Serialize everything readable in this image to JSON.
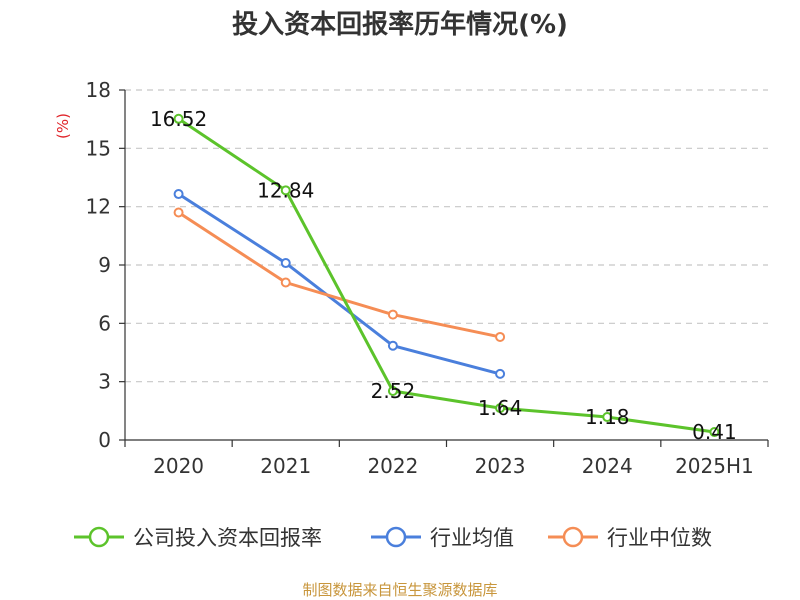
{
  "chart_data": {
    "type": "line",
    "title": "投入资本回报率历年情况(%)",
    "ylabel": "(%)",
    "categories": [
      "2020",
      "2021",
      "2022",
      "2023",
      "2024",
      "2025H1"
    ],
    "ylim": [
      0,
      18
    ],
    "yticks": [
      0,
      3,
      6,
      9,
      12,
      15,
      18
    ],
    "grid": true,
    "legend_position": "bottom",
    "series": [
      {
        "name": "公司投入资本回报率",
        "color": "#5cc32b",
        "values": [
          16.52,
          12.84,
          2.52,
          1.64,
          1.18,
          0.41
        ],
        "show_labels": true
      },
      {
        "name": "行业均值",
        "color": "#4a7fdc",
        "values": [
          12.65,
          9.1,
          4.85,
          3.4,
          null,
          null
        ],
        "show_labels": false
      },
      {
        "name": "行业中位数",
        "color": "#f58d55",
        "values": [
          11.7,
          8.1,
          6.45,
          5.3,
          null,
          null
        ],
        "show_labels": false
      }
    ],
    "data_labels": [
      "16.52",
      "12.84",
      "2.52",
      "1.64",
      "1.18",
      "0.41"
    ]
  },
  "source_text": "制图数据来自恒生聚源数据库"
}
